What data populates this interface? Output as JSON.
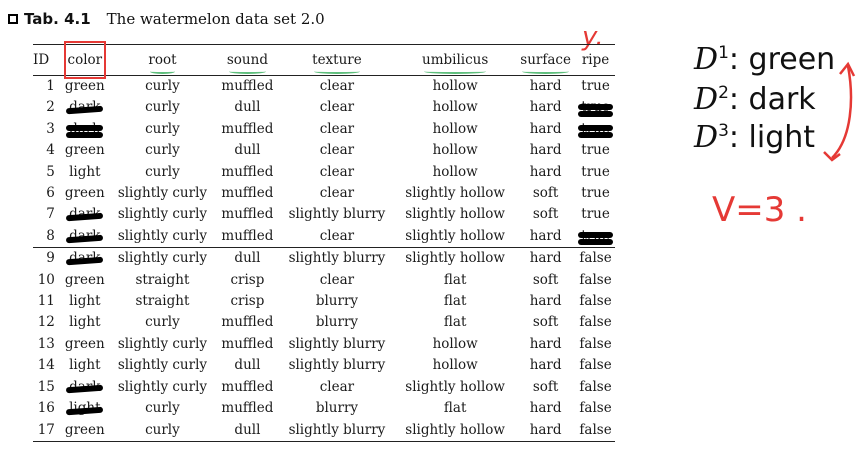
{
  "caption": {
    "label": "Tab. 4.1",
    "title": "The watermelon data set 2.0"
  },
  "table": {
    "headers": [
      "ID",
      "color",
      "root",
      "sound",
      "texture",
      "umbilicus",
      "surface",
      "ripe"
    ],
    "rows": [
      [
        "1",
        "green",
        "curly",
        "muffled",
        "clear",
        "hollow",
        "hard",
        "true"
      ],
      [
        "2",
        "dark",
        "curly",
        "dull",
        "clear",
        "hollow",
        "hard",
        "true"
      ],
      [
        "3",
        "dark",
        "curly",
        "muffled",
        "clear",
        "hollow",
        "hard",
        "true"
      ],
      [
        "4",
        "green",
        "curly",
        "dull",
        "clear",
        "hollow",
        "hard",
        "true"
      ],
      [
        "5",
        "light",
        "curly",
        "muffled",
        "clear",
        "hollow",
        "hard",
        "true"
      ],
      [
        "6",
        "green",
        "slightly curly",
        "muffled",
        "clear",
        "slightly hollow",
        "soft",
        "true"
      ],
      [
        "7",
        "dark",
        "slightly curly",
        "muffled",
        "slightly blurry",
        "slightly hollow",
        "soft",
        "true"
      ],
      [
        "8",
        "dark",
        "slightly curly",
        "muffled",
        "clear",
        "slightly hollow",
        "hard",
        "true"
      ],
      [
        "9",
        "dark",
        "slightly curly",
        "dull",
        "slightly blurry",
        "slightly hollow",
        "hard",
        "false"
      ],
      [
        "10",
        "green",
        "straight",
        "crisp",
        "clear",
        "flat",
        "soft",
        "false"
      ],
      [
        "11",
        "light",
        "straight",
        "crisp",
        "blurry",
        "flat",
        "hard",
        "false"
      ],
      [
        "12",
        "light",
        "curly",
        "muffled",
        "blurry",
        "flat",
        "soft",
        "false"
      ],
      [
        "13",
        "green",
        "slightly curly",
        "muffled",
        "slightly blurry",
        "hollow",
        "hard",
        "false"
      ],
      [
        "14",
        "light",
        "slightly curly",
        "dull",
        "slightly blurry",
        "hollow",
        "hard",
        "false"
      ],
      [
        "15",
        "dark",
        "slightly curly",
        "muffled",
        "clear",
        "slightly hollow",
        "soft",
        "false"
      ],
      [
        "16",
        "light",
        "curly",
        "muffled",
        "blurry",
        "flat",
        "hard",
        "false"
      ],
      [
        "17",
        "green",
        "curly",
        "dull",
        "slightly blurry",
        "slightly hollow",
        "hard",
        "false"
      ]
    ]
  },
  "annotations": {
    "y_label": "y.",
    "d1": {
      "sym": "D",
      "sup": "1",
      "text": ": green"
    },
    "d2": {
      "sym": "D",
      "sup": "2",
      "text": ": dark"
    },
    "d3": {
      "sym": "D",
      "sup": "3",
      "text": ": light"
    },
    "v": "V=3 ."
  },
  "colors": {
    "highlight_green": "#b9dfc5",
    "pen_red": "#e53935",
    "marker_black": "#000000"
  }
}
